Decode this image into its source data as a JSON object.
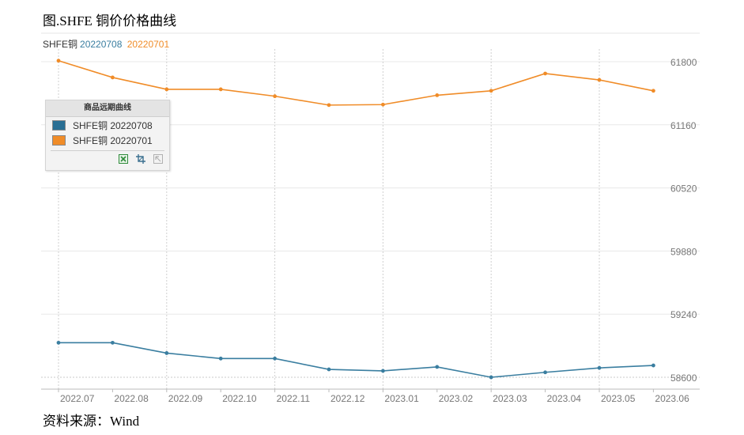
{
  "figure": {
    "title": "图.SHFE 铜价价格曲线",
    "source": "资料来源：Wind"
  },
  "legend_top": {
    "label": "SHFE铜",
    "series_a": "20220708",
    "series_b": "20220701"
  },
  "legend_box": {
    "title": "商品远期曲线",
    "items": [
      "SHFE铜 20220708",
      "SHFE铜 20220701"
    ],
    "tools": [
      "excel-export-icon",
      "crop-icon",
      "cursor-icon"
    ]
  },
  "colors": {
    "series_20220708": "#3a7ea0",
    "series_20220701": "#f08c28",
    "legend_series_a_text": "#3a7ea0",
    "legend_series_b_text": "#f08c28",
    "axis_text": "#777777"
  },
  "chart_data": {
    "type": "line",
    "categories": [
      "2022.07",
      "2022.08",
      "2022.09",
      "2022.10",
      "2022.11",
      "2022.12",
      "2023.01",
      "2023.02",
      "2023.03",
      "2023.04",
      "2023.05",
      "2023.06"
    ],
    "series": [
      {
        "name": "SHFE铜 20220708",
        "values": [
          58950,
          58950,
          58845,
          58790,
          58790,
          58680,
          58665,
          58705,
          58600,
          58650,
          58695,
          58720
        ]
      },
      {
        "name": "SHFE铜 20220701",
        "values": [
          61810,
          61640,
          61520,
          61520,
          61450,
          61360,
          61365,
          61460,
          61505,
          61680,
          61615,
          61505
        ]
      }
    ],
    "y_ticks": [
      58600,
      59240,
      59880,
      60520,
      61160,
      61800
    ],
    "ylim": [
      58600,
      61800
    ],
    "y_axis_position": "right",
    "grid": true,
    "legend": "top-left"
  }
}
